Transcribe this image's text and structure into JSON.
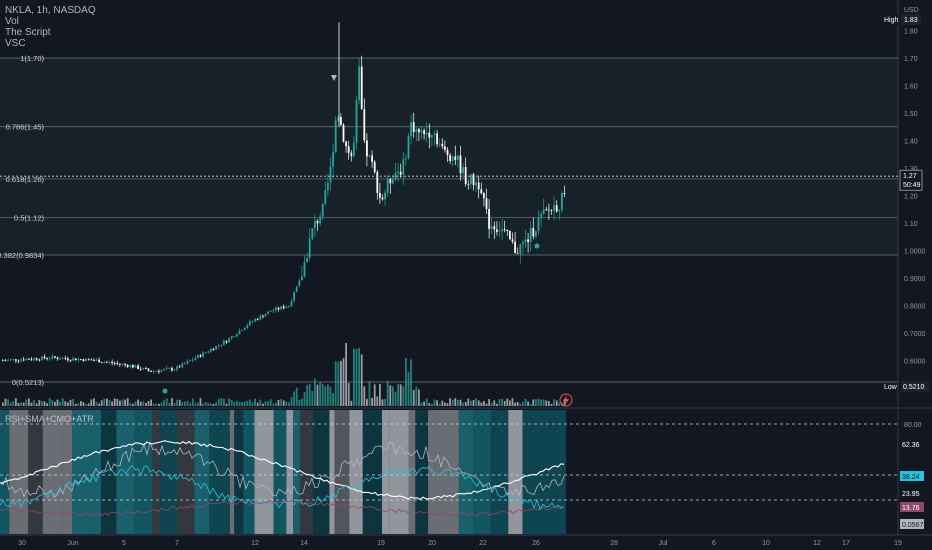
{
  "legend": {
    "symbol_line": "NKLA, 1h, NASDAQ",
    "lines": [
      "Vol",
      "The Script",
      "VSC"
    ]
  },
  "currency_label": "USD",
  "fib_levels": [
    {
      "label": "1(1.70)",
      "price": 1.7
    },
    {
      "label": "0.786(1.45)",
      "price": 1.45
    },
    {
      "label": "0.618(1.26)",
      "price": 1.26
    },
    {
      "label": "0.5(1.12)",
      "price": 1.12
    },
    {
      "label": "0.382(0.9834)",
      "price": 0.9834
    },
    {
      "label": "0(0.5213)",
      "price": 0.5213
    }
  ],
  "price_axis_ticks": [
    "1.80",
    "1.70",
    "1.60",
    "1.50",
    "1.40",
    "1.30",
    "1.20",
    "1.10",
    "1.0000",
    "0.9000",
    "0.8000",
    "0.7000",
    "0.6000",
    "0.5000"
  ],
  "high": {
    "label": "High",
    "value": "1.83"
  },
  "low": {
    "label": "Low",
    "value": "0.5210"
  },
  "current_price": {
    "value": "1.27",
    "countdown": "50:49"
  },
  "indicator": {
    "name": "RSI+SMA+CMO+ATR",
    "levels": [
      "80.00"
    ],
    "badges": [
      {
        "value": "62.36",
        "color": "#ffffff",
        "bg": "#131722"
      },
      {
        "value": "38.24",
        "color": "#131722",
        "bg": "#26c6da"
      },
      {
        "value": "23.95",
        "color": "#ffffff",
        "bg": "#131722"
      },
      {
        "value": "13.76",
        "color": "#ffffff",
        "bg": "#8e4a67"
      },
      {
        "value": "0.0567",
        "color": "#131722",
        "bg": "#b2b5be"
      }
    ]
  },
  "time_axis": [
    "30",
    "Jun",
    "5",
    "7",
    "12",
    "14",
    "19",
    "20",
    "22",
    "26",
    "28",
    "Jul",
    "6",
    "10",
    "12",
    "17",
    "19"
  ],
  "colors": {
    "up": "#26a69a",
    "down": "#ffffff",
    "grid": "#5d606b",
    "bg": "#131722"
  }
}
